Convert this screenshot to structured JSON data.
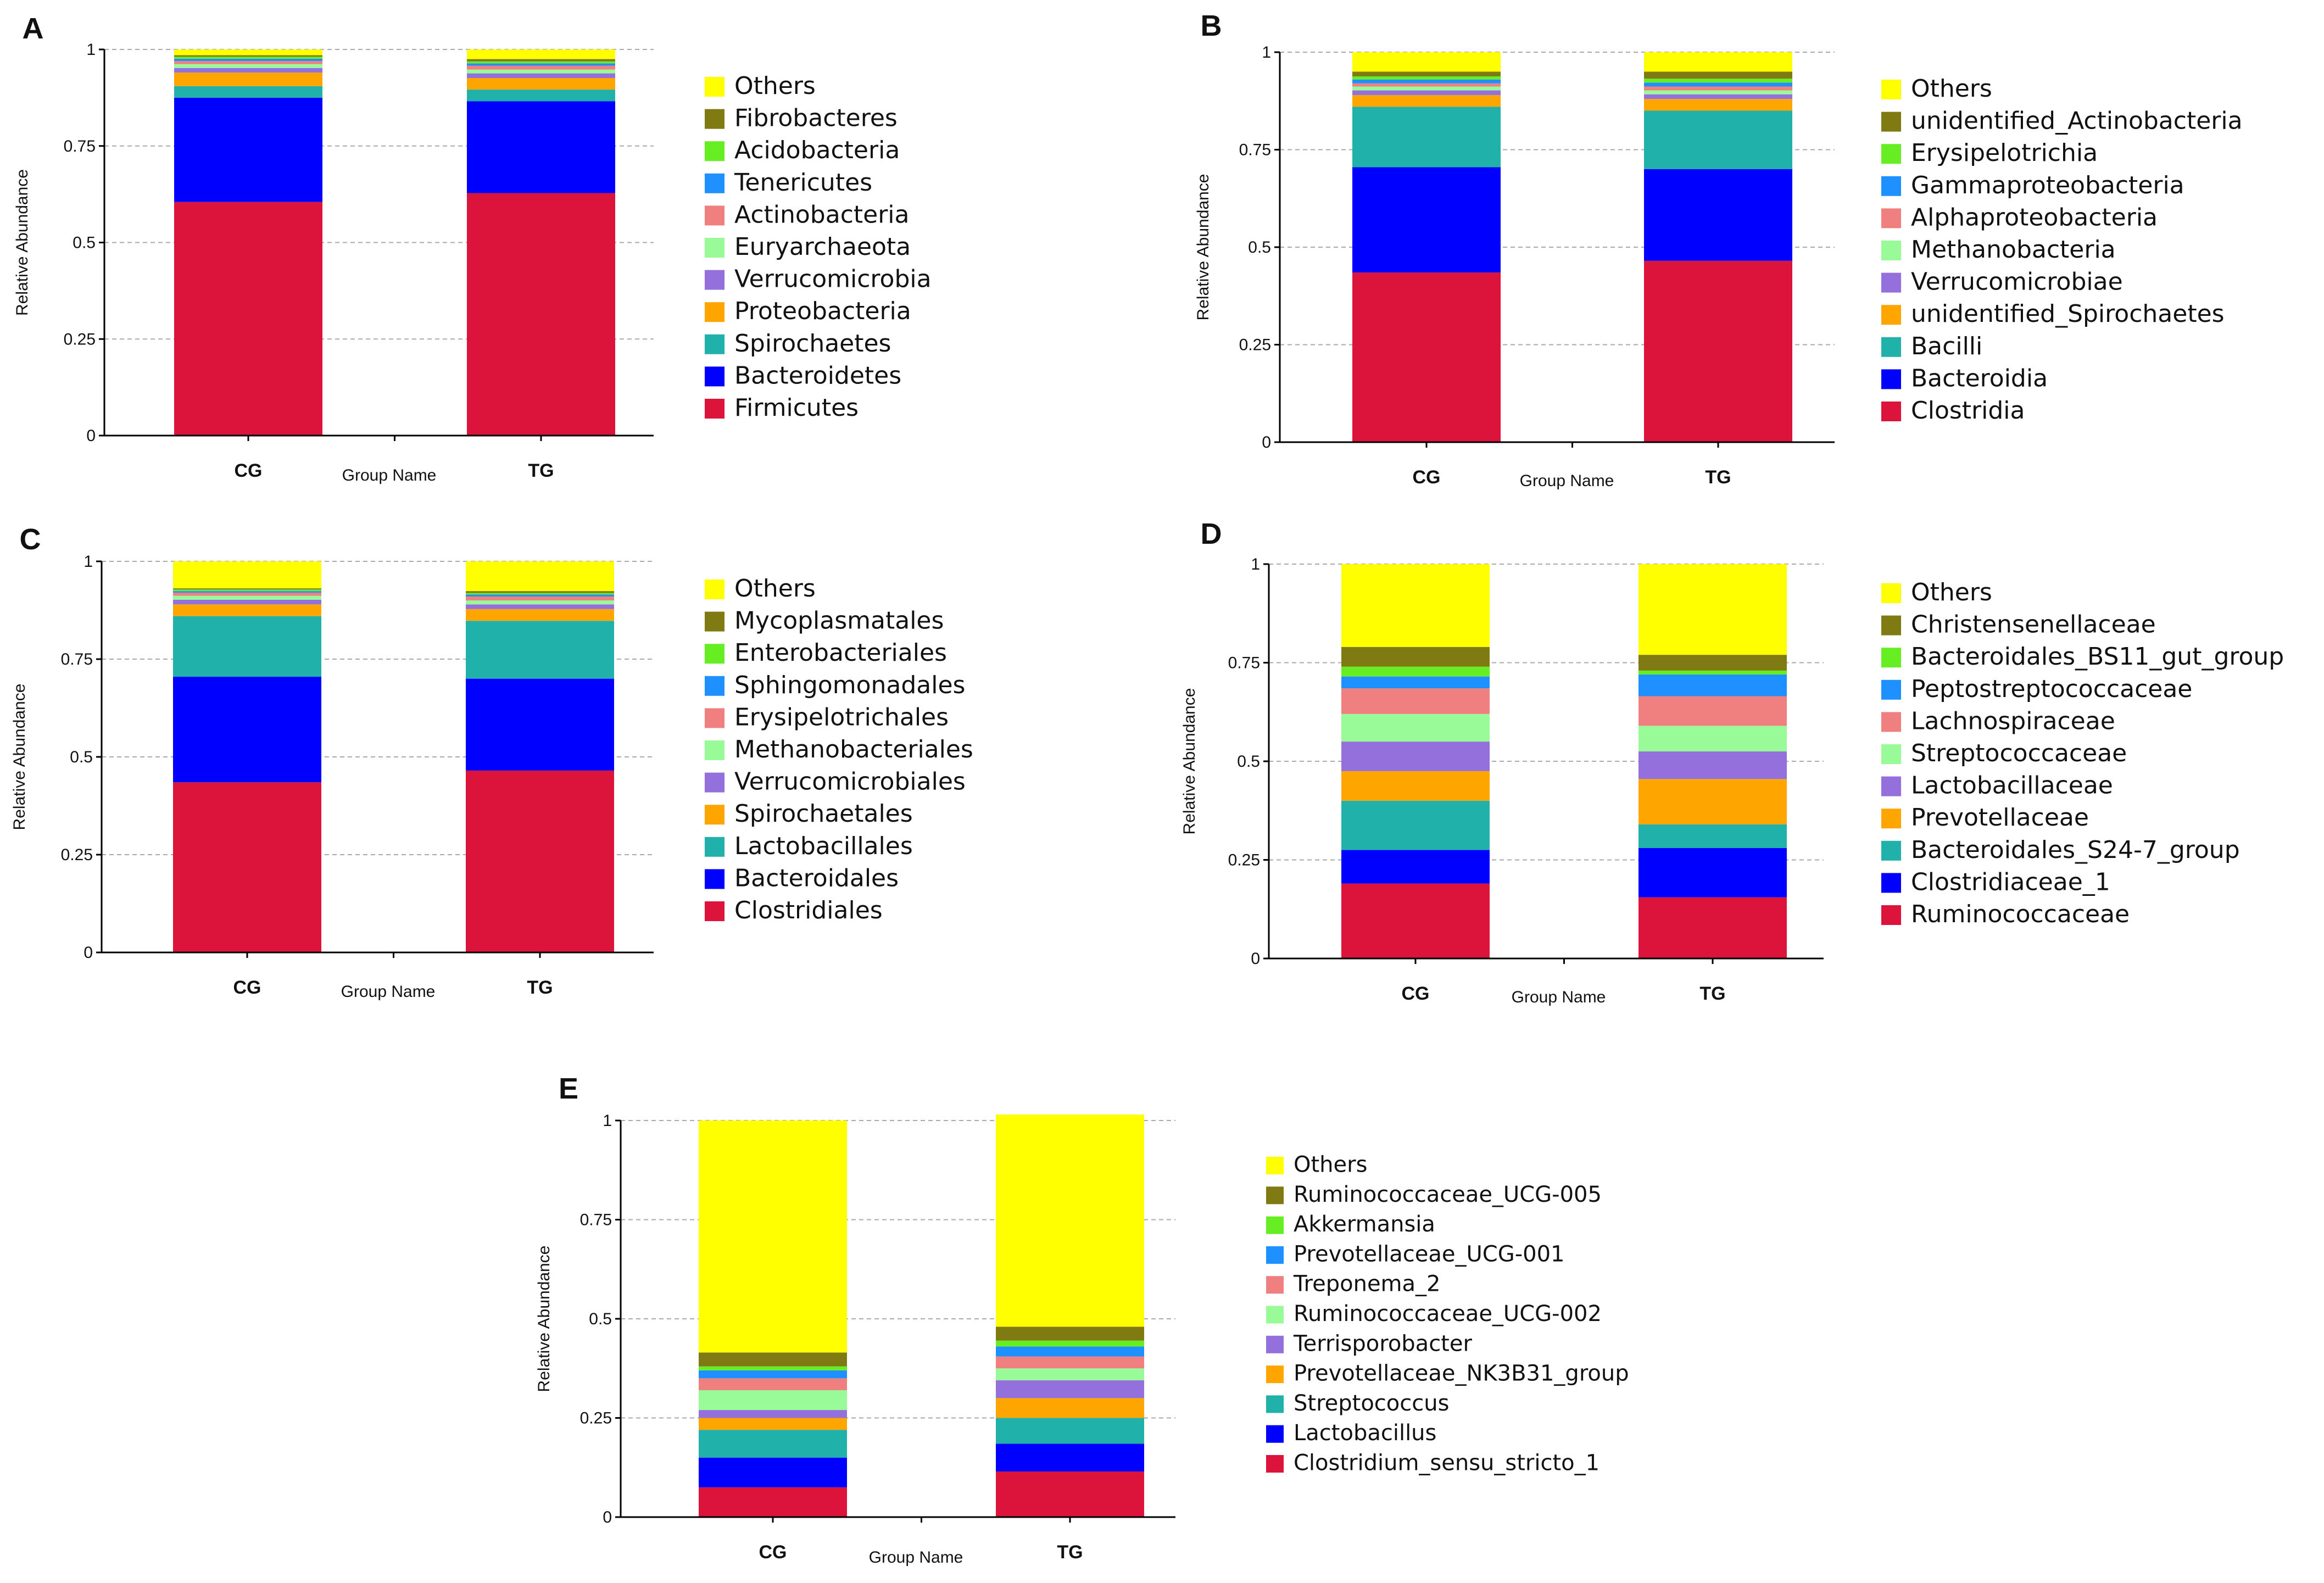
{
  "figure": {
    "colors": {
      "Others": "#FFFF00",
      "c10": "#7F7A11",
      "c9": "#66EE22",
      "c8": "#1E90FF",
      "c7": "#F08080",
      "c6": "#98FB98",
      "c5": "#9370DB",
      "c4": "#FFA500",
      "c3": "#20B2AA",
      "c2": "#0000FF",
      "c1": "#DC143C"
    }
  },
  "chart_data": [
    {
      "panel": "A",
      "type": "bar",
      "stacked": true,
      "title": "",
      "xlabel": "Group Name",
      "ylabel": "Relative Abundance",
      "ylim": [
        0,
        1
      ],
      "yticks": [
        "0",
        "0.25",
        "0.5",
        "0.75",
        "1"
      ],
      "categories": [
        "CG",
        "TG"
      ],
      "series": [
        {
          "name": "Firmicutes",
          "color_key": "c1",
          "values": [
            0.605,
            0.628
          ]
        },
        {
          "name": "Bacteroidetes",
          "color_key": "c2",
          "values": [
            0.27,
            0.238
          ]
        },
        {
          "name": "Spirochaetes",
          "color_key": "c3",
          "values": [
            0.03,
            0.03
          ]
        },
        {
          "name": "Proteobacteria",
          "color_key": "c4",
          "values": [
            0.035,
            0.03
          ]
        },
        {
          "name": "Verrucomicrobia",
          "color_key": "c5",
          "values": [
            0.012,
            0.012
          ]
        },
        {
          "name": "Euryarchaeota",
          "color_key": "c6",
          "values": [
            0.01,
            0.01
          ]
        },
        {
          "name": "Actinobacteria",
          "color_key": "c7",
          "values": [
            0.008,
            0.01
          ]
        },
        {
          "name": "Tenericutes",
          "color_key": "c8",
          "values": [
            0.006,
            0.006
          ]
        },
        {
          "name": "Acidobacteria",
          "color_key": "c9",
          "values": [
            0.005,
            0.005
          ]
        },
        {
          "name": "Fibrobacteres",
          "color_key": "c10",
          "values": [
            0.004,
            0.006
          ]
        },
        {
          "name": "Others",
          "color_key": "Others",
          "values": [
            0.015,
            0.025
          ]
        }
      ]
    },
    {
      "panel": "B",
      "type": "bar",
      "stacked": true,
      "title": "",
      "xlabel": "Group Name",
      "ylabel": "Relative Abundance",
      "ylim": [
        0,
        1
      ],
      "yticks": [
        "0",
        "0.25",
        "0.5",
        "0.75",
        "1"
      ],
      "categories": [
        "CG",
        "TG"
      ],
      "series": [
        {
          "name": "Clostridia",
          "color_key": "c1",
          "values": [
            0.435,
            0.465
          ]
        },
        {
          "name": "Bacteroidia",
          "color_key": "c2",
          "values": [
            0.27,
            0.235
          ]
        },
        {
          "name": "Bacilli",
          "color_key": "c3",
          "values": [
            0.155,
            0.15
          ]
        },
        {
          "name": "unidentified_Spirochaetes",
          "color_key": "c4",
          "values": [
            0.03,
            0.03
          ]
        },
        {
          "name": "Verrucomicrobiae",
          "color_key": "c5",
          "values": [
            0.012,
            0.012
          ]
        },
        {
          "name": "Methanobacteria",
          "color_key": "c6",
          "values": [
            0.01,
            0.01
          ]
        },
        {
          "name": "Alphaproteobacteria",
          "color_key": "c7",
          "values": [
            0.008,
            0.01
          ]
        },
        {
          "name": "Gammaproteobacteria",
          "color_key": "c8",
          "values": [
            0.01,
            0.01
          ]
        },
        {
          "name": "Erysipelotrichia",
          "color_key": "c9",
          "values": [
            0.008,
            0.01
          ]
        },
        {
          "name": "unidentified_Actinobacteria",
          "color_key": "c10",
          "values": [
            0.012,
            0.018
          ]
        },
        {
          "name": "Others",
          "color_key": "Others",
          "values": [
            0.05,
            0.05
          ]
        }
      ]
    },
    {
      "panel": "C",
      "type": "bar",
      "stacked": true,
      "title": "",
      "xlabel": "Group Name",
      "ylabel": "Relative Abundance",
      "ylim": [
        0,
        1
      ],
      "yticks": [
        "0",
        "0.25",
        "0.5",
        "0.75",
        "1"
      ],
      "categories": [
        "CG",
        "TG"
      ],
      "series": [
        {
          "name": "Clostridiales",
          "color_key": "c1",
          "values": [
            0.435,
            0.465
          ]
        },
        {
          "name": "Bacteroidales",
          "color_key": "c2",
          "values": [
            0.27,
            0.235
          ]
        },
        {
          "name": "Lactobacillales",
          "color_key": "c3",
          "values": [
            0.155,
            0.148
          ]
        },
        {
          "name": "Spirochaetales",
          "color_key": "c4",
          "values": [
            0.03,
            0.03
          ]
        },
        {
          "name": "Verrucomicrobiales",
          "color_key": "c5",
          "values": [
            0.012,
            0.012
          ]
        },
        {
          "name": "Methanobacteriales",
          "color_key": "c6",
          "values": [
            0.01,
            0.01
          ]
        },
        {
          "name": "Erysipelotrichales",
          "color_key": "c7",
          "values": [
            0.008,
            0.01
          ]
        },
        {
          "name": "Sphingomonadales",
          "color_key": "c8",
          "values": [
            0.004,
            0.005
          ]
        },
        {
          "name": "Enterobacteriales",
          "color_key": "c9",
          "values": [
            0.004,
            0.004
          ]
        },
        {
          "name": "Mycoplasmatales",
          "color_key": "c10",
          "values": [
            0.003,
            0.005
          ]
        },
        {
          "name": "Others",
          "color_key": "Others",
          "values": [
            0.069,
            0.076
          ]
        }
      ]
    },
    {
      "panel": "D",
      "type": "bar",
      "stacked": true,
      "title": "",
      "xlabel": "Group Name",
      "ylabel": "Relative Abundance",
      "ylim": [
        0,
        1
      ],
      "yticks": [
        "0",
        "0.25",
        "0.5",
        "0.75",
        "1"
      ],
      "categories": [
        "CG",
        "TG"
      ],
      "series": [
        {
          "name": "Ruminococcaceae",
          "color_key": "c1",
          "values": [
            0.19,
            0.155
          ]
        },
        {
          "name": "Clostridiaceae_1",
          "color_key": "c2",
          "values": [
            0.085,
            0.125
          ]
        },
        {
          "name": "Bacteroidales_S24-7_group",
          "color_key": "c3",
          "values": [
            0.125,
            0.06
          ]
        },
        {
          "name": "Prevotellaceae",
          "color_key": "c4",
          "values": [
            0.075,
            0.115
          ]
        },
        {
          "name": "Lactobacillaceae",
          "color_key": "c5",
          "values": [
            0.075,
            0.07
          ]
        },
        {
          "name": "Streptococcaceae",
          "color_key": "c6",
          "values": [
            0.07,
            0.065
          ]
        },
        {
          "name": "Lachnospiraceae",
          "color_key": "c7",
          "values": [
            0.065,
            0.075
          ]
        },
        {
          "name": "Peptostreptococcaceae",
          "color_key": "c8",
          "values": [
            0.03,
            0.055
          ]
        },
        {
          "name": "Bacteroidales_BS11_gut_group",
          "color_key": "c9",
          "values": [
            0.025,
            0.01
          ]
        },
        {
          "name": "Christensenellaceae",
          "color_key": "c10",
          "values": [
            0.05,
            0.04
          ]
        },
        {
          "name": "Others",
          "color_key": "Others",
          "values": [
            0.21,
            0.23
          ]
        }
      ]
    },
    {
      "panel": "E",
      "type": "bar",
      "stacked": true,
      "title": "",
      "xlabel": "Group Name",
      "ylabel": "Relative Abundance",
      "ylim": [
        0,
        1
      ],
      "yticks": [
        "0",
        "0.25",
        "0.5",
        "0.75",
        "1"
      ],
      "categories": [
        "CG",
        "TG"
      ],
      "series": [
        {
          "name": "Clostridium_sensu_stricto_1",
          "color_key": "c1",
          "values": [
            0.075,
            0.115
          ]
        },
        {
          "name": "Lactobacillus",
          "color_key": "c2",
          "values": [
            0.075,
            0.07
          ]
        },
        {
          "name": "Streptococcus",
          "color_key": "c3",
          "values": [
            0.07,
            0.065
          ]
        },
        {
          "name": "Prevotellaceae_NK3B31_group",
          "color_key": "c4",
          "values": [
            0.03,
            0.05
          ]
        },
        {
          "name": "Terrisporobacter",
          "color_key": "c5",
          "values": [
            0.02,
            0.045
          ]
        },
        {
          "name": "Ruminococcaceae_UCG-002",
          "color_key": "c6",
          "values": [
            0.05,
            0.03
          ]
        },
        {
          "name": "Treponema_2",
          "color_key": "c7",
          "values": [
            0.03,
            0.03
          ]
        },
        {
          "name": "Prevotellaceae_UCG-001",
          "color_key": "c8",
          "values": [
            0.02,
            0.025
          ]
        },
        {
          "name": "Akkermansia",
          "color_key": "c9",
          "values": [
            0.01,
            0.015
          ]
        },
        {
          "name": "Ruminococcaceae_UCG-005",
          "color_key": "c10",
          "values": [
            0.035,
            0.035
          ]
        },
        {
          "name": "Others",
          "color_key": "Others",
          "values": [
            0.585,
            0.535
          ]
        }
      ]
    }
  ]
}
